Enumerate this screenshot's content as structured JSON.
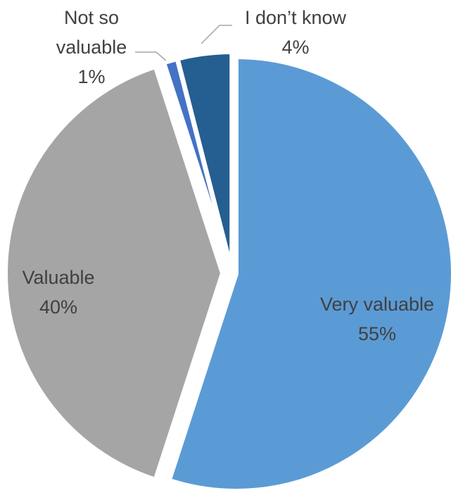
{
  "chart_data": {
    "type": "pie",
    "slices": [
      {
        "label": "Very valuable",
        "value": 55,
        "value_label": "55%",
        "color": "#5b9bd5"
      },
      {
        "label": "Valuable",
        "value": 40,
        "value_label": "40%",
        "color": "#a5a5a5"
      },
      {
        "label": "Not so valuable",
        "value": 1,
        "value_label": "1%",
        "color": "#4472c4"
      },
      {
        "label": "I don’t know",
        "value": 4,
        "value_label": "4%",
        "color": "#255e91"
      }
    ],
    "label_lines": [
      [
        "Very valuable",
        "55%"
      ],
      [
        "Valuable",
        "40%"
      ],
      [
        "Not so",
        "valuable",
        "1%"
      ],
      [
        "I don’t know",
        "4%"
      ]
    ],
    "start_angle_deg": 0,
    "direction": "clockwise",
    "legend": "none",
    "data_labels": "category and percentage"
  }
}
